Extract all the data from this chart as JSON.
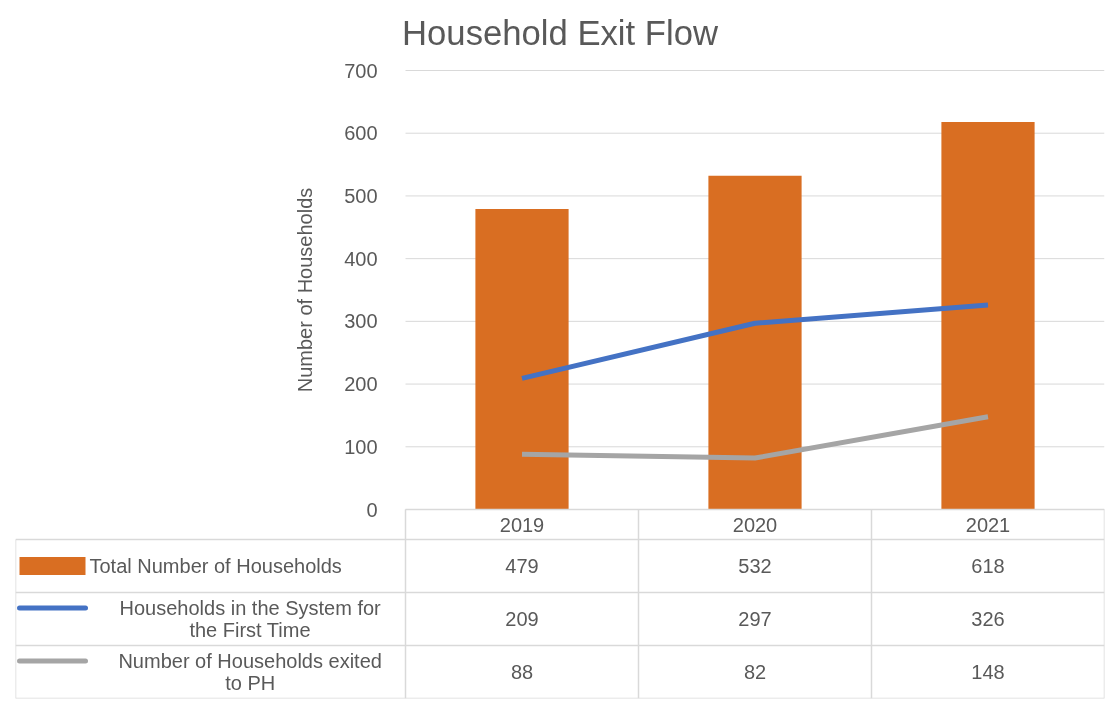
{
  "chart_data": {
    "type": "bar",
    "title": "Household Exit Flow",
    "ylabel": "Number of Households",
    "categories": [
      "2019",
      "2020",
      "2021"
    ],
    "series": [
      {
        "name": "Total Number of Households",
        "color": "#d96e22",
        "values": [
          479,
          532,
          618
        ]
      },
      {
        "name": "Households in the System for the First Time",
        "type": "line",
        "color": "#4472c4",
        "values": [
          209,
          297,
          326
        ]
      },
      {
        "name": "Number of Households exited to PH",
        "type": "line",
        "color": "#a5a5a5",
        "values": [
          88,
          82,
          148
        ]
      }
    ],
    "ylim": [
      0,
      700
    ],
    "yticks": [
      0,
      100,
      200,
      300,
      400,
      500,
      600,
      700
    ],
    "grid": "y",
    "legend": "bottom",
    "data_labels": true,
    "line_style": "solid",
    "marker": "none"
  }
}
